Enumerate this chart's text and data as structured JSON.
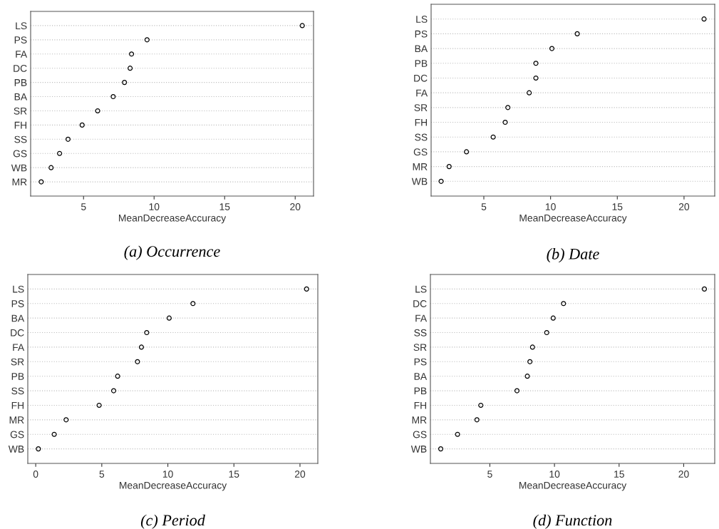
{
  "chart_data": [
    {
      "type": "scatter",
      "orientation": "horizontal",
      "title": "(a) Occurrence",
      "xlabel": "MeanDecreaseAccuracy",
      "categories": [
        "LS",
        "PS",
        "FA",
        "DC",
        "PB",
        "BA",
        "SR",
        "FH",
        "SS",
        "GS",
        "WB",
        "MR"
      ],
      "values": [
        20.5,
        9.5,
        8.4,
        8.3,
        7.9,
        7.1,
        6.0,
        4.9,
        3.9,
        3.3,
        2.7,
        2.0
      ],
      "color": "#000000",
      "marker": "circle",
      "grid": "y",
      "xlim": [
        1.25,
        21.3
      ],
      "xticks": [
        5,
        10,
        15,
        20
      ]
    },
    {
      "type": "scatter",
      "orientation": "horizontal",
      "title": "(b) Date",
      "xlabel": "MeanDecreaseAccuracy",
      "categories": [
        "LS",
        "PS",
        "BA",
        "PB",
        "DC",
        "FA",
        "SR",
        "FH",
        "SS",
        "GS",
        "MR",
        "WB"
      ],
      "values": [
        21.5,
        12.0,
        10.1,
        8.9,
        8.9,
        8.4,
        6.8,
        6.6,
        5.7,
        3.7,
        2.4,
        1.8
      ],
      "color": "#000000",
      "marker": "circle",
      "grid": "y",
      "xlim": [
        1.05,
        22.3
      ],
      "xticks": [
        5,
        10,
        15,
        20
      ]
    },
    {
      "type": "scatter",
      "orientation": "horizontal",
      "title": "(c) Period",
      "xlabel": "MeanDecreaseAccuracy",
      "categories": [
        "LS",
        "PS",
        "BA",
        "DC",
        "FA",
        "SR",
        "PB",
        "SS",
        "FH",
        "MR",
        "GS",
        "WB"
      ],
      "values": [
        20.5,
        11.9,
        10.1,
        8.4,
        8.0,
        7.7,
        6.2,
        5.9,
        4.8,
        2.3,
        1.4,
        0.2
      ],
      "color": "#000000",
      "marker": "circle",
      "grid": "y",
      "xlim": [
        -0.6,
        21.35
      ],
      "xticks": [
        0,
        5,
        10,
        15,
        20
      ]
    },
    {
      "type": "scatter",
      "orientation": "horizontal",
      "title": "(d) Function",
      "xlabel": "MeanDecreaseAccuracy",
      "categories": [
        "LS",
        "DC",
        "FA",
        "SS",
        "SR",
        "PS",
        "BA",
        "PB",
        "FH",
        "MR",
        "GS",
        "WB"
      ],
      "values": [
        21.6,
        10.7,
        9.9,
        9.4,
        8.3,
        8.1,
        7.9,
        7.1,
        4.3,
        4.0,
        2.5,
        1.2
      ],
      "color": "#000000",
      "marker": "circle",
      "grid": "y",
      "xlim": [
        0.4,
        22.4
      ],
      "xticks": [
        5,
        10,
        15,
        20
      ]
    }
  ]
}
